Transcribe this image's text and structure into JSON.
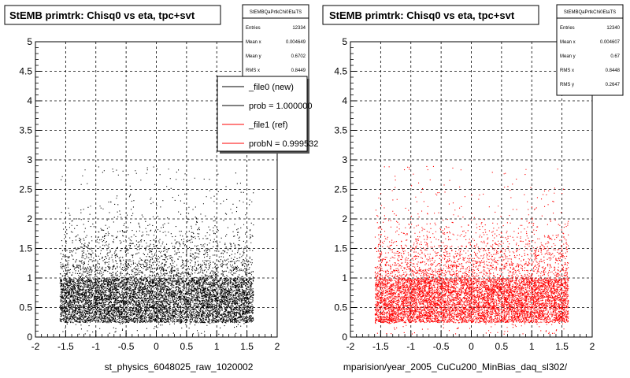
{
  "footer_left": "",
  "chart_data": [
    {
      "type": "scatter",
      "title": "StEMB primtrk: Chisq0 vs eta, tpc+svt",
      "xlabel": "st_physics_6048025_raw_1020002",
      "ylabel": "",
      "xlim": [
        -2,
        2
      ],
      "ylim": [
        0,
        5
      ],
      "xticks": [
        "-2",
        "-1.5",
        "-1",
        "-0.5",
        "0",
        "0.5",
        "1",
        "1.5",
        "2"
      ],
      "yticks": [
        "0",
        "0.5",
        "1",
        "1.5",
        "2",
        "2.5",
        "3",
        "3.5",
        "4",
        "4.5",
        "5"
      ],
      "grid": true,
      "marker_color": "#000000",
      "stats": {
        "name": "StEMBQaPrtkChi0EtaTS",
        "rows": [
          {
            "label": "Entries",
            "value": "12334"
          },
          {
            "label": "Mean x",
            "value": "0.004649"
          },
          {
            "label": "Mean y",
            "value": "0.6702"
          },
          {
            "label": "RMS x",
            "value": "0.8449"
          }
        ]
      },
      "legend": {
        "placement": "top-right",
        "entries": [
          {
            "label": "_file0 (new)",
            "color": "#000000"
          },
          {
            "label": "prob = 1.000000",
            "color": "#000000"
          },
          {
            "label": "_file1 (ref)",
            "color": "#ff0000"
          },
          {
            "label": "probN = 0.999532",
            "color": "#ff0000"
          }
        ]
      },
      "distribution": {
        "entries": 12334,
        "eta_range": [
          -1.6,
          1.6
        ],
        "dense_y_range": [
          0.25,
          1.0
        ],
        "mean_x": 0.004649,
        "mean_y": 0.6702
      }
    },
    {
      "type": "scatter",
      "title": "StEMB primtrk: Chisq0 vs eta, tpc+svt",
      "xlabel": "mparision/year_2005_CuCu200_MinBias_daq_sl302/",
      "ylabel": "",
      "xlim": [
        -2,
        2
      ],
      "ylim": [
        0,
        5
      ],
      "xticks": [
        "-2",
        "-1.5",
        "-1",
        "-0.5",
        "0",
        "0.5",
        "1",
        "1.5",
        "2"
      ],
      "yticks": [
        "0",
        "0.5",
        "1",
        "1.5",
        "2",
        "2.5",
        "3",
        "3.5",
        "4",
        "4.5",
        "5"
      ],
      "grid": true,
      "marker_color": "#ff0000",
      "stats": {
        "name": "StEMBQaPrtkChi0EtaTS",
        "rows": [
          {
            "label": "Entries",
            "value": "12340"
          },
          {
            "label": "Mean x",
            "value": "0.004607"
          },
          {
            "label": "Mean y",
            "value": "0.67"
          },
          {
            "label": "RMS x",
            "value": "0.8448"
          },
          {
            "label": "RMS y",
            "value": "0.2647"
          }
        ]
      },
      "distribution": {
        "entries": 12340,
        "eta_range": [
          -1.6,
          1.6
        ],
        "dense_y_range": [
          0.25,
          1.0
        ],
        "mean_x": 0.004607,
        "mean_y": 0.67
      }
    }
  ]
}
